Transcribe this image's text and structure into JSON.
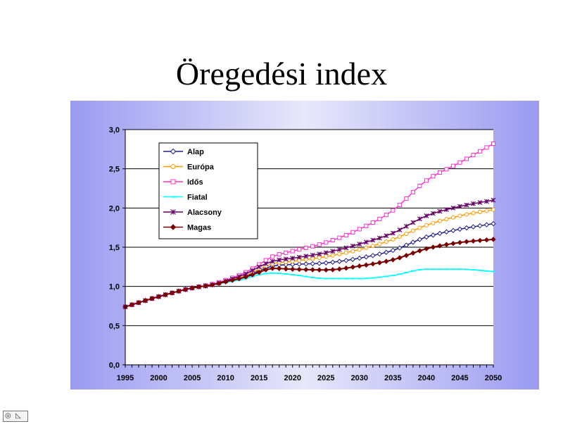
{
  "slide": {
    "title": "Öregedési index"
  },
  "chart_data": {
    "type": "line",
    "title": "Öregedési index",
    "xlabel": "",
    "ylabel": "",
    "xlim": [
      1995,
      2050
    ],
    "ylim": [
      0,
      3.0
    ],
    "grid": true,
    "legend_position": "top-left",
    "x_ticks": [
      "1995",
      "2000",
      "2005",
      "2010",
      "2015",
      "2020",
      "2025",
      "2030",
      "2035",
      "2040",
      "2045",
      "2050"
    ],
    "y_ticks": [
      "0,0",
      "0,5",
      "1,0",
      "1,5",
      "2,0",
      "2,5",
      "3,0"
    ],
    "x": [
      1995,
      2000,
      2005,
      2008,
      2010,
      2013,
      2015,
      2017,
      2020,
      2025,
      2030,
      2035,
      2040,
      2045,
      2050
    ],
    "series": [
      {
        "name": "Alap",
        "color": "#1f1f8f",
        "marker": "diamond-open",
        "values": [
          0.74,
          0.87,
          0.98,
          1.02,
          1.06,
          1.13,
          1.2,
          1.26,
          1.28,
          1.3,
          1.36,
          1.46,
          1.63,
          1.73,
          1.8
        ]
      },
      {
        "name": "Európa",
        "color": "#ff9900",
        "marker": "circle-open",
        "values": [
          0.74,
          0.87,
          0.98,
          1.02,
          1.06,
          1.14,
          1.22,
          1.29,
          1.32,
          1.38,
          1.47,
          1.6,
          1.78,
          1.9,
          1.98
        ]
      },
      {
        "name": "Idős",
        "color": "#ff33cc",
        "marker": "square-open",
        "values": [
          0.74,
          0.87,
          0.98,
          1.03,
          1.08,
          1.18,
          1.28,
          1.38,
          1.45,
          1.56,
          1.73,
          1.97,
          2.35,
          2.58,
          2.82
        ]
      },
      {
        "name": "Fiatal",
        "color": "#00ffff",
        "marker": "bar",
        "values": [
          0.74,
          0.87,
          0.98,
          1.02,
          1.05,
          1.1,
          1.15,
          1.17,
          1.15,
          1.1,
          1.1,
          1.14,
          1.22,
          1.22,
          1.19
        ]
      },
      {
        "name": "Alacsony",
        "color": "#660066",
        "marker": "star",
        "values": [
          0.74,
          0.87,
          0.98,
          1.02,
          1.07,
          1.16,
          1.25,
          1.32,
          1.36,
          1.43,
          1.54,
          1.68,
          1.9,
          2.02,
          2.1
        ]
      },
      {
        "name": "Magas",
        "color": "#7a0000",
        "marker": "diamond-filled",
        "values": [
          0.74,
          0.87,
          0.98,
          1.02,
          1.06,
          1.12,
          1.18,
          1.23,
          1.22,
          1.21,
          1.26,
          1.34,
          1.48,
          1.56,
          1.6
        ]
      }
    ]
  },
  "nav": {
    "icons": [
      "navigation-icon",
      "slide-outline-icon"
    ]
  }
}
